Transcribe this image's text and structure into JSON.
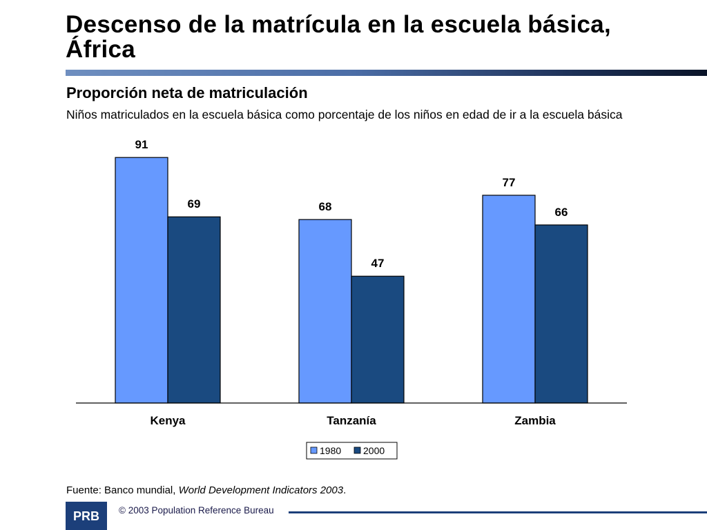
{
  "title": "Descenso de la matrícula en la escuela básica, África",
  "subtitle": "Proporción neta de matriculación",
  "description": "Niños matriculados en la escuela básica como porcentaje de los niños en edad de ir a la escuela básica",
  "source": {
    "prefix": "Fuente: Banco mundial, ",
    "publication": "World Development Indicators 2003",
    "suffix": "."
  },
  "footer": {
    "logo_text": "PRB",
    "copyright": "© 2003 Population Reference Bureau"
  },
  "colors": {
    "series_1980": "#6699ff",
    "series_2000": "#1a4a80",
    "footer_navy": "#1c3f7a"
  },
  "chart_data": {
    "type": "bar",
    "categories": [
      "Kenya",
      "Tanzanía",
      "Zambia"
    ],
    "series": [
      {
        "name": "1980",
        "values": [
          91,
          68,
          77
        ]
      },
      {
        "name": "2000",
        "values": [
          69,
          47,
          66
        ]
      }
    ],
    "ylim": [
      0,
      100
    ],
    "grid": false,
    "legend": "bottom-center",
    "data_labels": true
  }
}
